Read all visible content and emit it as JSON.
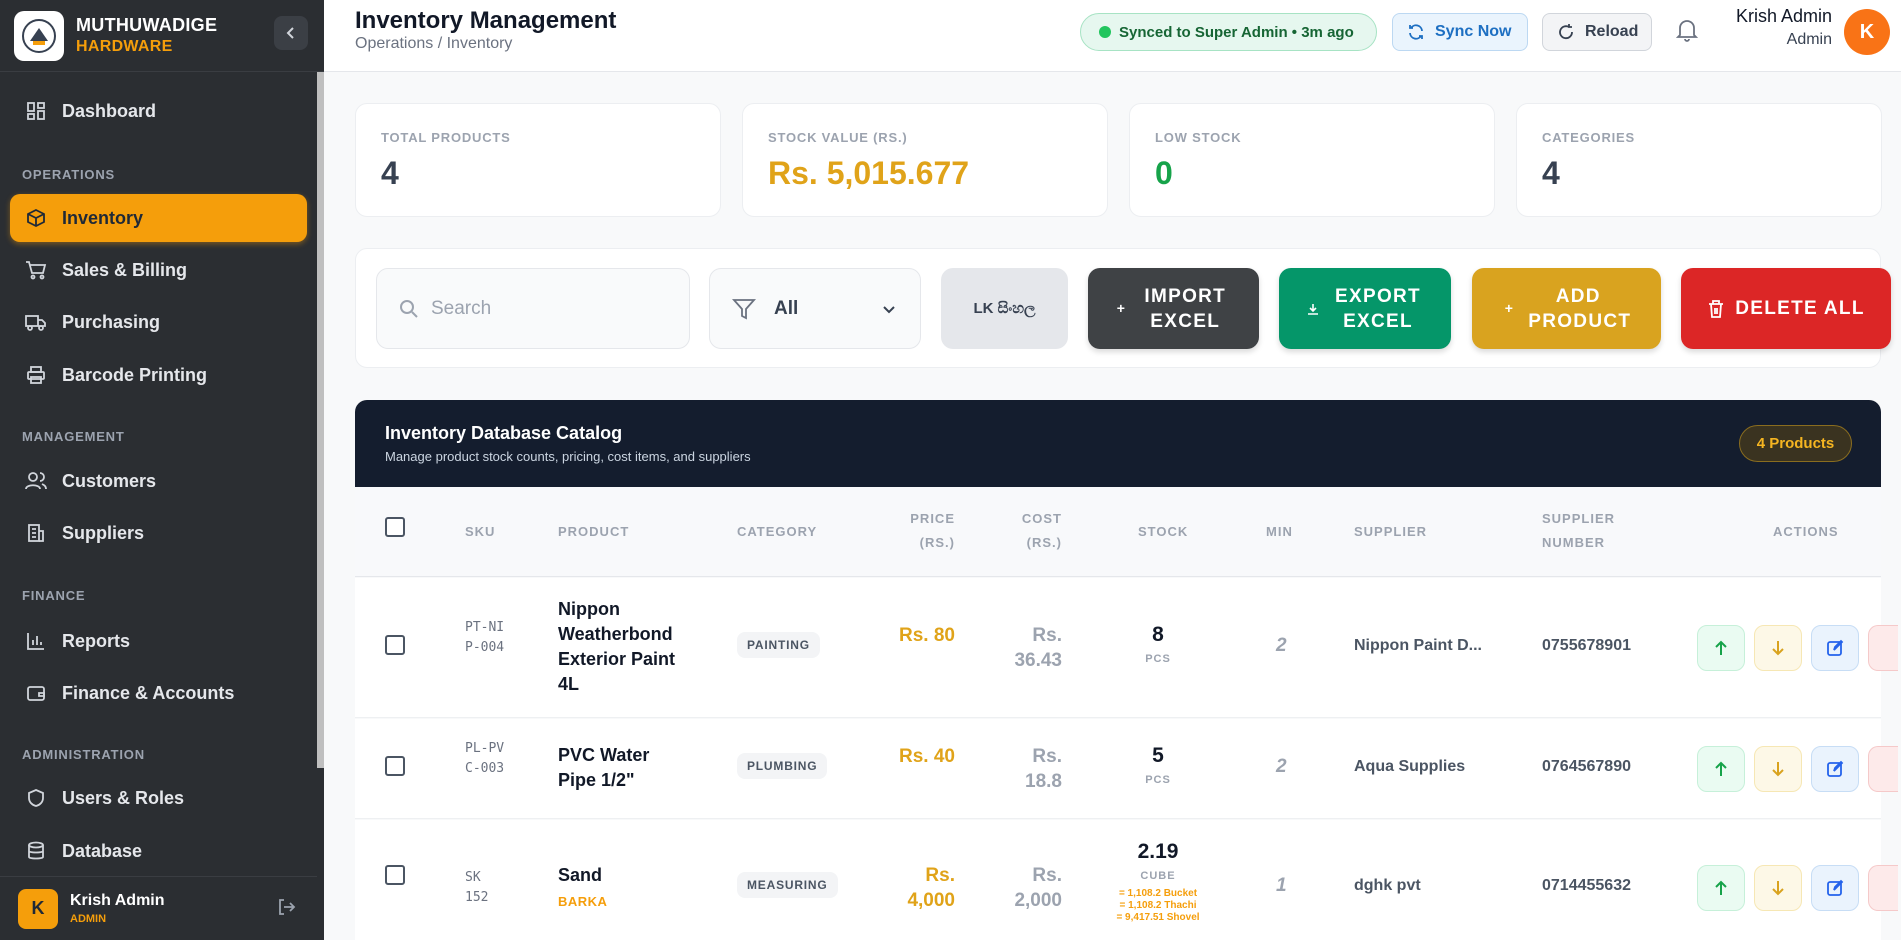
{
  "sidebar": {
    "brand_name": "MUTHUWADIGE",
    "brand_sub": "HARDWARE",
    "dashboard": "Dashboard",
    "sections": {
      "operations": "OPERATIONS",
      "management": "MANAGEMENT",
      "finance": "FINANCE",
      "administration": "ADMINISTRATION"
    },
    "items": {
      "inventory": "Inventory",
      "sales": "Sales & Billing",
      "purchasing": "Purchasing",
      "barcode": "Barcode Printing",
      "customers": "Customers",
      "suppliers": "Suppliers",
      "reports": "Reports",
      "finance": "Finance & Accounts",
      "users": "Users & Roles",
      "database": "Database"
    },
    "user": {
      "initial": "K",
      "name": "Krish Admin",
      "role": "ADMIN"
    }
  },
  "header": {
    "title": "Inventory Management",
    "breadcrumb": "Operations / Inventory",
    "sync_status": "Synced to Super Admin • 3m ago",
    "sync_now": "Sync Now",
    "reload": "Reload",
    "user_name": "Krish Admin",
    "user_role": "Admin",
    "user_initial": "K"
  },
  "stats": [
    {
      "label": "TOTAL PRODUCTS",
      "value": "4",
      "color": "#374151"
    },
    {
      "label": "STOCK VALUE (RS.)",
      "value": "Rs. 5,015.677",
      "color": "#e0a319"
    },
    {
      "label": "LOW STOCK",
      "value": "0",
      "color": "#16a34a"
    },
    {
      "label": "CATEGORIES",
      "value": "4",
      "color": "#374151"
    }
  ],
  "toolbar": {
    "search_placeholder": "Search",
    "filter_value": "All",
    "language": "LK සිංහල",
    "import_label": "IMPORT EXCEL",
    "export_label": "EXPORT EXCEL",
    "add_label": "ADD PRODUCT",
    "delete_label": "DELETE ALL"
  },
  "catalog": {
    "title": "Inventory Database Catalog",
    "subtitle": "Manage product stock counts, pricing, cost items, and suppliers",
    "count_badge": "4 Products"
  },
  "table": {
    "headers": {
      "sku": "SKU",
      "product": "PRODUCT",
      "category": "CATEGORY",
      "price": "PRICE (RS.)",
      "cost": "COST (RS.)",
      "stock": "STOCK",
      "min": "MIN",
      "supplier": "SUPPLIER",
      "supplier_number": "SUPPLIER NUMBER",
      "actions": "ACTIONS"
    },
    "rows": [
      {
        "sku": "PT-NIP-004",
        "product": "Nippon Weatherbond Exterior Paint 4L",
        "sub": "",
        "category": "PAINTING",
        "price": "Rs. 80",
        "cost": "Rs. 36.43",
        "stock": "8",
        "unit": "PCS",
        "conversions": [],
        "min": "2",
        "supplier": "Nippon Paint D...",
        "supplier_number": "0755678901"
      },
      {
        "sku": "PL-PVC-003",
        "product": "PVC Water Pipe 1/2\"",
        "sub": "",
        "category": "PLUMBING",
        "price": "Rs. 40",
        "cost": "Rs. 18.8",
        "stock": "5",
        "unit": "PCS",
        "conversions": [],
        "min": "2",
        "supplier": "Aqua Supplies",
        "supplier_number": "0764567890"
      },
      {
        "sku": "SK 152",
        "product": "Sand",
        "sub": "BARKA",
        "category": "MEASURING",
        "price": "Rs. 4,000",
        "cost": "Rs. 2,000",
        "stock": "2.19",
        "unit": "CUBE",
        "conversions": [
          "= 1,108.2 Bucket",
          "= 1,108.2 Thachi",
          "= 9,417.51 Shovel"
        ],
        "min": "1",
        "supplier": "dghk pvt",
        "supplier_number": "0714455632"
      }
    ]
  }
}
